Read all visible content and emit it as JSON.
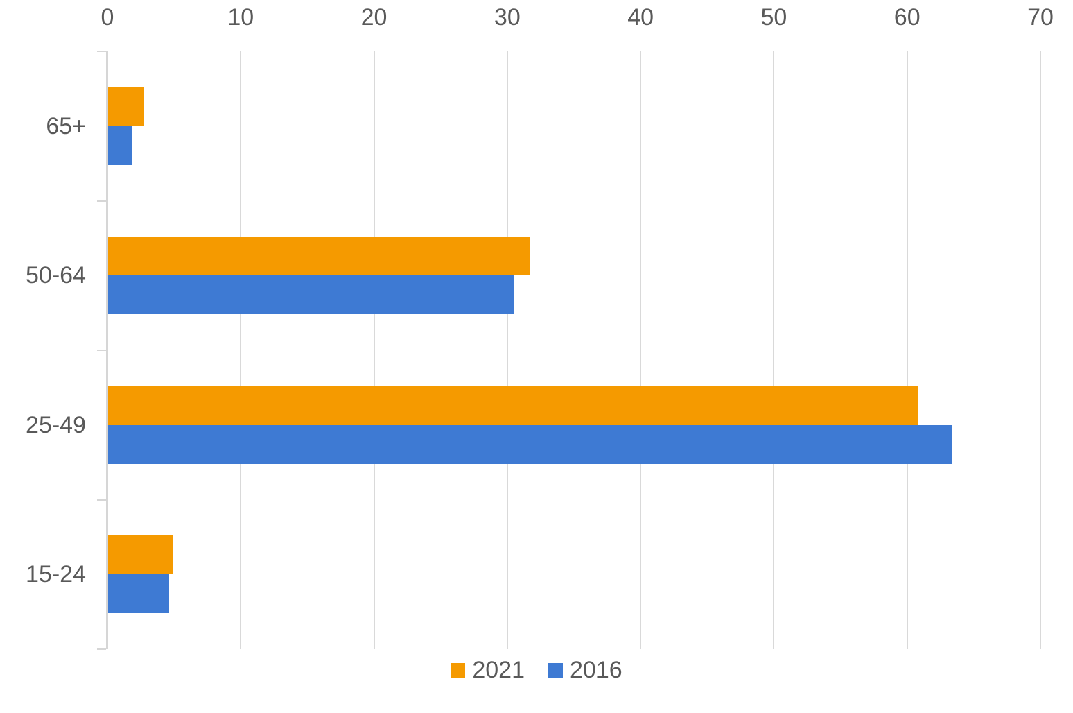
{
  "chart_data": {
    "type": "bar",
    "orientation": "horizontal",
    "title": "",
    "categories": [
      "65+",
      "50-64",
      "25-49",
      "15-24"
    ],
    "series": [
      {
        "name": "2021",
        "color": "#f59a00",
        "values": [
          2.7,
          31.6,
          60.8,
          4.9
        ]
      },
      {
        "name": "2016",
        "color": "#3e7ad3",
        "values": [
          1.8,
          30.4,
          63.3,
          4.6
        ]
      }
    ],
    "x_axis": {
      "position": "top",
      "min": 0,
      "max": 70,
      "tick_interval": 10,
      "tick_labels": [
        "0",
        "10",
        "20",
        "30",
        "40",
        "50",
        "60",
        "70"
      ]
    },
    "y_axis": {
      "position": "left",
      "categories_top_to_bottom": [
        "65+",
        "50-64",
        "25-49",
        "15-24"
      ]
    },
    "legend": {
      "position": "bottom",
      "entries": [
        {
          "label": "2021",
          "color": "#f59a00"
        },
        {
          "label": "2016",
          "color": "#3e7ad3"
        }
      ]
    },
    "grid": true,
    "colors": {
      "axis_text": "#595959",
      "gridline": "#d9d9d9",
      "background": "#ffffff"
    }
  }
}
